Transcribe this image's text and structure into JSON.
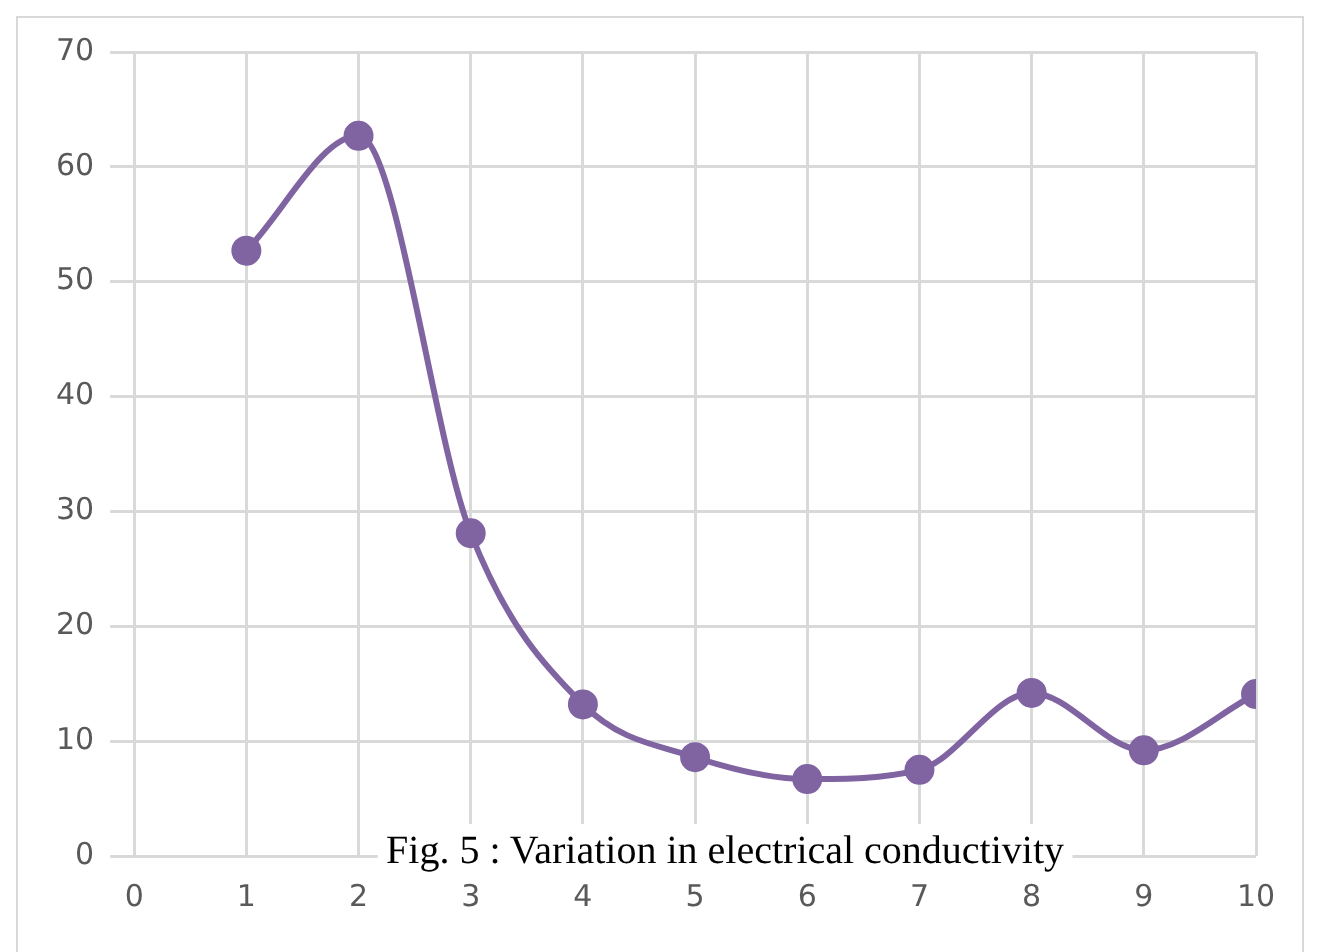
{
  "chart_data": {
    "type": "line",
    "x": [
      1,
      2,
      3,
      4,
      5,
      6,
      7,
      8,
      9,
      10
    ],
    "series": [
      {
        "color": "#8064a2",
        "values": [
          52.7,
          62.7,
          28.1,
          13.2,
          8.6,
          6.7,
          7.5,
          14.2,
          9.2,
          14.1
        ]
      }
    ],
    "xlim": [
      0,
      10
    ],
    "xticks": [
      0,
      1,
      2,
      3,
      4,
      5,
      6,
      7,
      8,
      9,
      10
    ],
    "ylim": [
      0,
      70
    ],
    "yticks": [
      0,
      10,
      20,
      30,
      40,
      50,
      60,
      70
    ],
    "grid": true,
    "legend": false,
    "marker": "circle",
    "line_style": "solid",
    "annotations": [
      "Fig. 5 : Variation in electrical conductivity"
    ]
  }
}
